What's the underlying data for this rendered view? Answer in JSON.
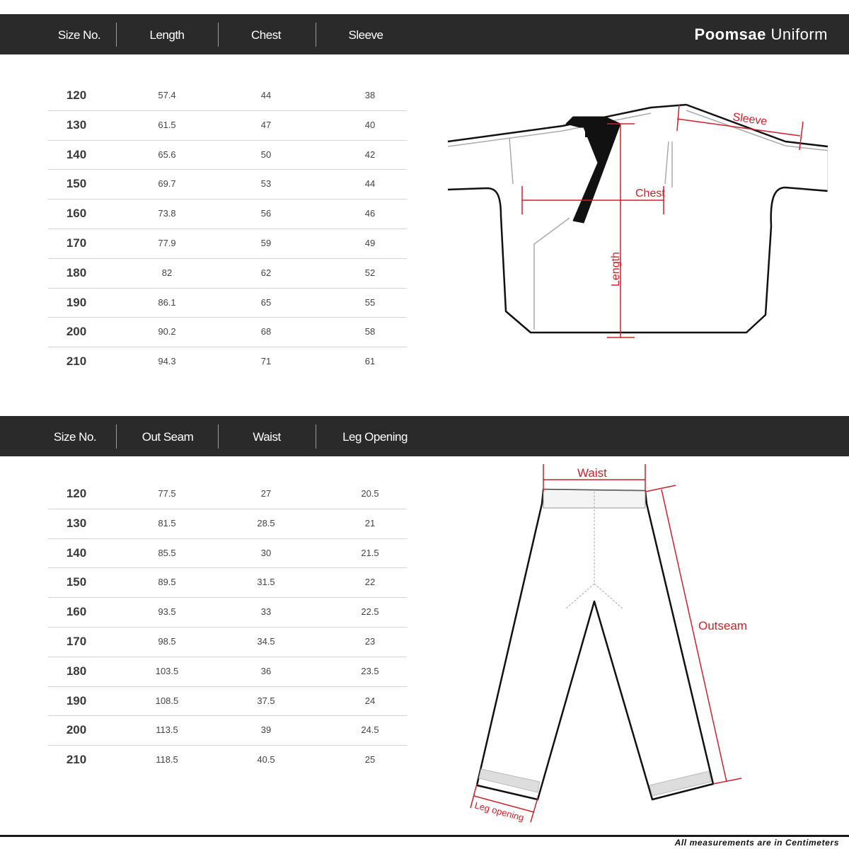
{
  "title": {
    "bold": "Poomsae",
    "rest": "Uniform"
  },
  "top_table": {
    "headers": [
      "Size No.",
      "Length",
      "Chest",
      "Sleeve"
    ],
    "rows": [
      [
        "120",
        "57.4",
        "44",
        "38"
      ],
      [
        "130",
        "61.5",
        "47",
        "40"
      ],
      [
        "140",
        "65.6",
        "50",
        "42"
      ],
      [
        "150",
        "69.7",
        "53",
        "44"
      ],
      [
        "160",
        "73.8",
        "56",
        "46"
      ],
      [
        "170",
        "77.9",
        "59",
        "49"
      ],
      [
        "180",
        "82",
        "62",
        "52"
      ],
      [
        "190",
        "86.1",
        "65",
        "55"
      ],
      [
        "200",
        "90.2",
        "68",
        "58"
      ],
      [
        "210",
        "94.3",
        "71",
        "61"
      ]
    ]
  },
  "bottom_table": {
    "headers": [
      "Size No.",
      "Out Seam",
      "Waist",
      "Leg  Opening"
    ],
    "rows": [
      [
        "120",
        "77.5",
        "27",
        "20.5"
      ],
      [
        "130",
        "81.5",
        "28.5",
        "21"
      ],
      [
        "140",
        "85.5",
        "30",
        "21.5"
      ],
      [
        "150",
        "89.5",
        "31.5",
        "22"
      ],
      [
        "160",
        "93.5",
        "33",
        "22.5"
      ],
      [
        "170",
        "98.5",
        "34.5",
        "23"
      ],
      [
        "180",
        "103.5",
        "36",
        "23.5"
      ],
      [
        "190",
        "108.5",
        "37.5",
        "24"
      ],
      [
        "200",
        "113.5",
        "39",
        "24.5"
      ],
      [
        "210",
        "118.5",
        "40.5",
        "25"
      ]
    ]
  },
  "jacket_labels": {
    "sleeve": "Sleeve",
    "chest": "Chest",
    "length": "Length"
  },
  "pants_labels": {
    "waist": "Waist",
    "outseam": "Outseam",
    "leg_opening": "Leg opening"
  },
  "footer": "All measurements are in Centimeters",
  "colors": {
    "header_bg": "#2a2a2a",
    "measure_red": "#d0202a"
  }
}
